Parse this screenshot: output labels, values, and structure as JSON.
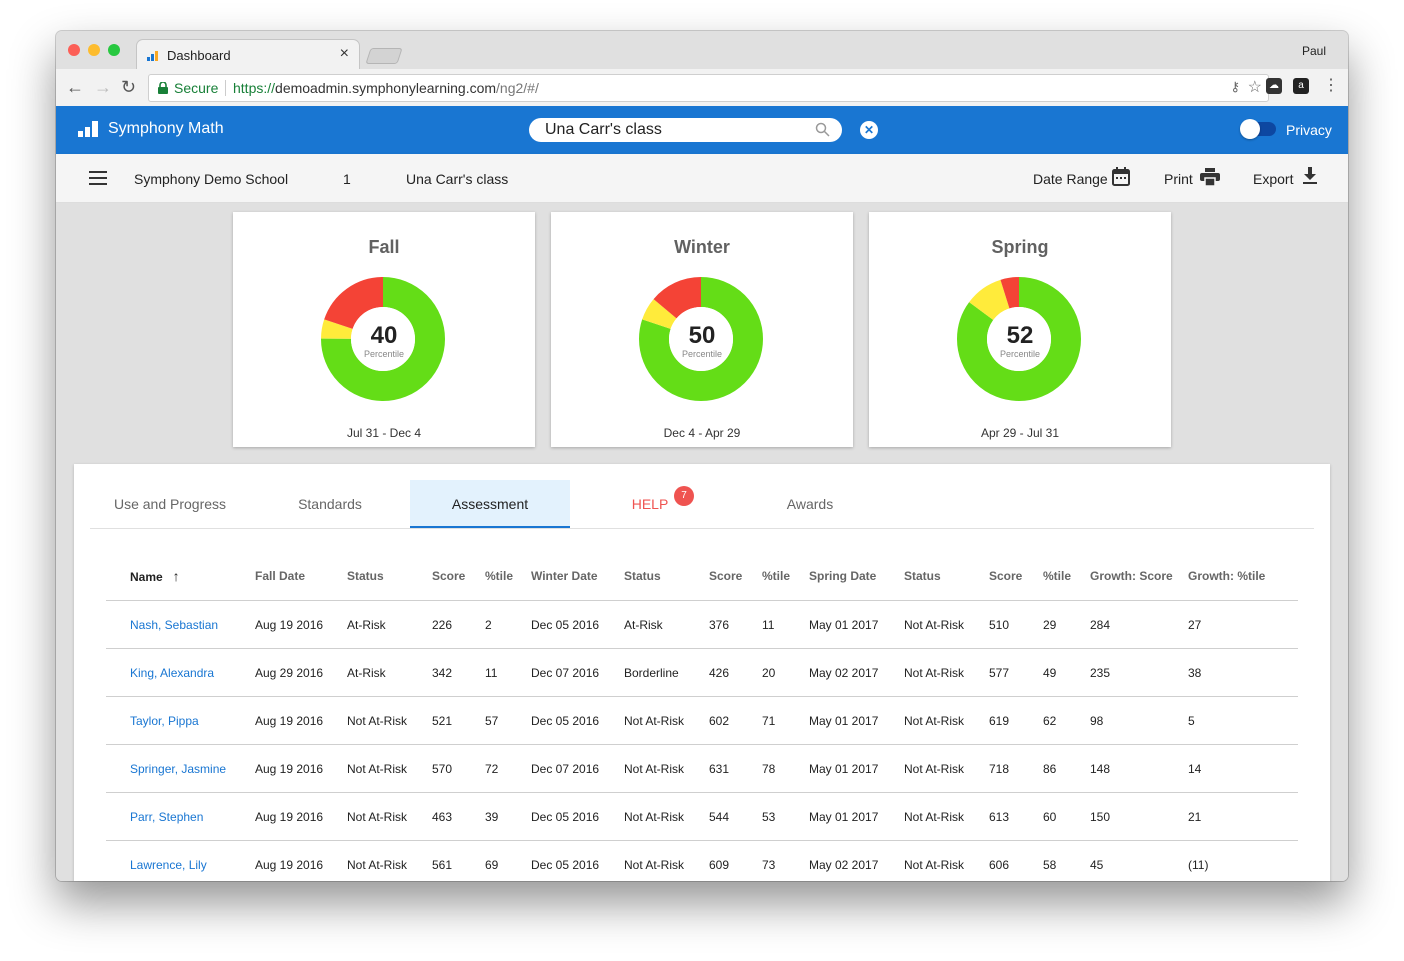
{
  "browser": {
    "tab_title": "Dashboard",
    "profile": "Paul",
    "secure_label": "Secure",
    "url_prefix": "https://",
    "url_host": "demoadmin.symphonylearning.com",
    "url_path": "/ng2/#/"
  },
  "app": {
    "name": "Symphony Math",
    "search_value": "Una Carr's class",
    "privacy_label": "Privacy",
    "accent_color": "#1976d2"
  },
  "breadcrumb": {
    "school": "Symphony Demo School",
    "grade": "1",
    "class": "Una Carr's class"
  },
  "actions": {
    "date_range": "Date Range",
    "print": "Print",
    "export": "Export"
  },
  "cards": [
    {
      "title": "Fall",
      "percentile": "40",
      "label": "Percentile",
      "range": "Jul 31 - Dec 4",
      "segments": {
        "green": 75,
        "yellow": 5,
        "red": 20
      }
    },
    {
      "title": "Winter",
      "percentile": "50",
      "label": "Percentile",
      "range": "Dec 4 - Apr 29",
      "segments": {
        "green": 80,
        "yellow": 6,
        "red": 14
      }
    },
    {
      "title": "Spring",
      "percentile": "52",
      "label": "Percentile",
      "range": "Apr 29 - Jul 31",
      "segments": {
        "green": 85,
        "yellow": 10,
        "red": 5
      }
    }
  ],
  "colors": {
    "green": "#64dd17",
    "yellow": "#ffeb3b",
    "red": "#f44336"
  },
  "tabs": [
    {
      "label": "Use and Progress"
    },
    {
      "label": "Standards"
    },
    {
      "label": "Assessment",
      "active": true
    },
    {
      "label": "HELP",
      "badge": "7"
    },
    {
      "label": "Awards"
    }
  ],
  "table": {
    "headers": [
      "Name",
      "Fall Date",
      "Status",
      "Score",
      "%tile",
      "Winter Date",
      "Status",
      "Score",
      "%tile",
      "Spring Date",
      "Status",
      "Score",
      "%tile",
      "Growth: Score",
      "Growth: %tile"
    ],
    "rows": [
      [
        "Nash, Sebastian",
        "Aug 19 2016",
        "At-Risk",
        "226",
        "2",
        "Dec 05 2016",
        "At-Risk",
        "376",
        "11",
        "May 01 2017",
        "Not At-Risk",
        "510",
        "29",
        "284",
        "27"
      ],
      [
        "King, Alexandra",
        "Aug 29 2016",
        "At-Risk",
        "342",
        "11",
        "Dec 07 2016",
        "Borderline",
        "426",
        "20",
        "May 02 2017",
        "Not At-Risk",
        "577",
        "49",
        "235",
        "38"
      ],
      [
        "Taylor, Pippa",
        "Aug 19 2016",
        "Not At-Risk",
        "521",
        "57",
        "Dec 05 2016",
        "Not At-Risk",
        "602",
        "71",
        "May 01 2017",
        "Not At-Risk",
        "619",
        "62",
        "98",
        "5"
      ],
      [
        "Springer, Jasmine",
        "Aug 19 2016",
        "Not At-Risk",
        "570",
        "72",
        "Dec 07 2016",
        "Not At-Risk",
        "631",
        "78",
        "May 01 2017",
        "Not At-Risk",
        "718",
        "86",
        "148",
        "14"
      ],
      [
        "Parr, Stephen",
        "Aug 19 2016",
        "Not At-Risk",
        "463",
        "39",
        "Dec 05 2016",
        "Not At-Risk",
        "544",
        "53",
        "May 01 2017",
        "Not At-Risk",
        "613",
        "60",
        "150",
        "21"
      ],
      [
        "Lawrence, Lily",
        "Aug 19 2016",
        "Not At-Risk",
        "561",
        "69",
        "Dec 05 2016",
        "Not At-Risk",
        "609",
        "73",
        "May 02 2017",
        "Not At-Risk",
        "606",
        "58",
        "45",
        "(11)"
      ]
    ]
  }
}
